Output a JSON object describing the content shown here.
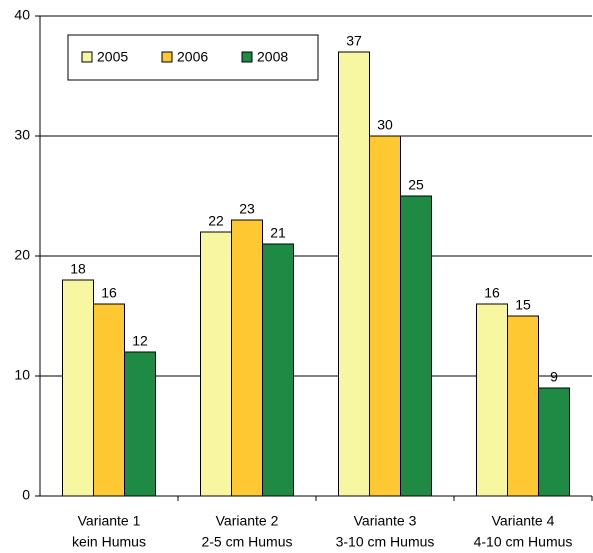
{
  "chart_data": {
    "type": "bar",
    "categories": [
      [
        "Variante 1",
        "kein Humus"
      ],
      [
        "Variante 2",
        "2-5 cm Humus"
      ],
      [
        "Variante 3",
        "3-10 cm Humus"
      ],
      [
        "Variante 4",
        "4-10 cm Humus"
      ]
    ],
    "series": [
      {
        "name": "2005",
        "color": "#f7f7a1",
        "values": [
          18,
          22,
          37,
          16
        ]
      },
      {
        "name": "2006",
        "color": "#fdc832",
        "values": [
          16,
          23,
          30,
          15
        ]
      },
      {
        "name": "2008",
        "color": "#1f8a43",
        "values": [
          12,
          21,
          25,
          9
        ]
      }
    ],
    "ylim": [
      0,
      40
    ],
    "yticks": [
      0,
      10,
      20,
      30,
      40
    ],
    "grid": true
  }
}
